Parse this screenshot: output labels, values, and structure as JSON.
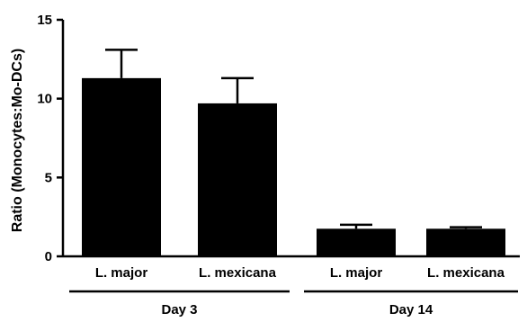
{
  "chart_data": {
    "type": "bar",
    "ylabel": "Ratio (Monocytes:Mo-DCs)",
    "ylim": [
      0,
      15
    ],
    "yticks": [
      0,
      5,
      10,
      15
    ],
    "categories": [
      "L. major",
      "L. mexicana",
      "L. major",
      "L. mexicana"
    ],
    "values": [
      11.3,
      9.7,
      1.75,
      1.75
    ],
    "errors": [
      1.8,
      1.6,
      0.25,
      0.1
    ],
    "groups": [
      {
        "label": "Day 3",
        "members": [
          0,
          1
        ]
      },
      {
        "label": "Day 14",
        "members": [
          2,
          3
        ]
      }
    ],
    "bar_color": "#000000",
    "grid": false
  }
}
